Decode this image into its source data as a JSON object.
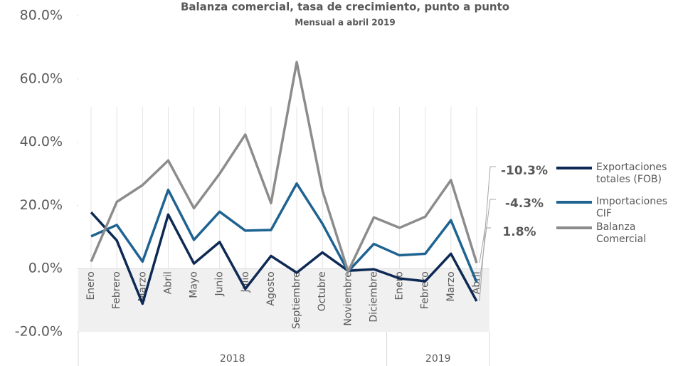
{
  "chart_data": {
    "type": "line",
    "title": "Balanza comercial, tasa de crecimiento, punto a punto",
    "subtitle": "Mensual a abril 2019",
    "categories": [
      "Enero",
      "Febrero",
      "Marzo",
      "Abril",
      "Mayo",
      "Junio",
      "Julio",
      "Agosto",
      "Septiembre",
      "Octubre",
      "Noviembre",
      "Diciembre",
      "Enero",
      "Febrero",
      "Marzo",
      "Abril"
    ],
    "groups": [
      "2018",
      "2019"
    ],
    "series": [
      {
        "name": "Exportaciones totales (FOB)",
        "color": "#0e2a54",
        "values": [
          17.8,
          8.9,
          -11.1,
          17.1,
          1.6,
          8.4,
          -6.4,
          4.0,
          -1.3,
          5.1,
          -0.7,
          -0.2,
          -3.1,
          -4.0,
          4.7,
          -10.3
        ],
        "value_labels": [
          null,
          null,
          null,
          null,
          null,
          null,
          null,
          null,
          null,
          null,
          null,
          null,
          null,
          null,
          null,
          "-10.3%"
        ]
      },
      {
        "name": "Importaciones CIF",
        "color": "#1f6391",
        "values": [
          10.2,
          13.8,
          2.2,
          24.9,
          9.1,
          18.0,
          12.0,
          12.2,
          26.9,
          14.2,
          -0.9,
          7.8,
          4.2,
          4.7,
          15.3,
          -4.3
        ],
        "value_labels": [
          null,
          null,
          null,
          null,
          null,
          null,
          null,
          null,
          null,
          null,
          null,
          null,
          null,
          null,
          null,
          "-4.3%"
        ]
      },
      {
        "name": "Balanza Comercial",
        "color": "#8c8c8c",
        "values": [
          2.2,
          21.1,
          26.4,
          34.2,
          19.1,
          30.0,
          42.4,
          20.7,
          65.3,
          24.7,
          -0.9,
          16.2,
          12.9,
          16.4,
          28.0,
          1.8
        ],
        "value_labels": [
          null,
          null,
          null,
          null,
          null,
          null,
          null,
          null,
          null,
          null,
          null,
          null,
          null,
          null,
          null,
          "1.8%"
        ]
      }
    ],
    "ylim": [
      -20,
      80
    ],
    "yticks": [
      {
        "value": -20,
        "label": "-20.0%"
      },
      {
        "value": 0,
        "label": "0.0%"
      },
      {
        "value": 20,
        "label": "20.0%"
      },
      {
        "value": 40,
        "label": "40.0%"
      },
      {
        "value": 60,
        "label": "60.0%"
      },
      {
        "value": 80,
        "label": "80.0%"
      }
    ],
    "grid": true
  }
}
